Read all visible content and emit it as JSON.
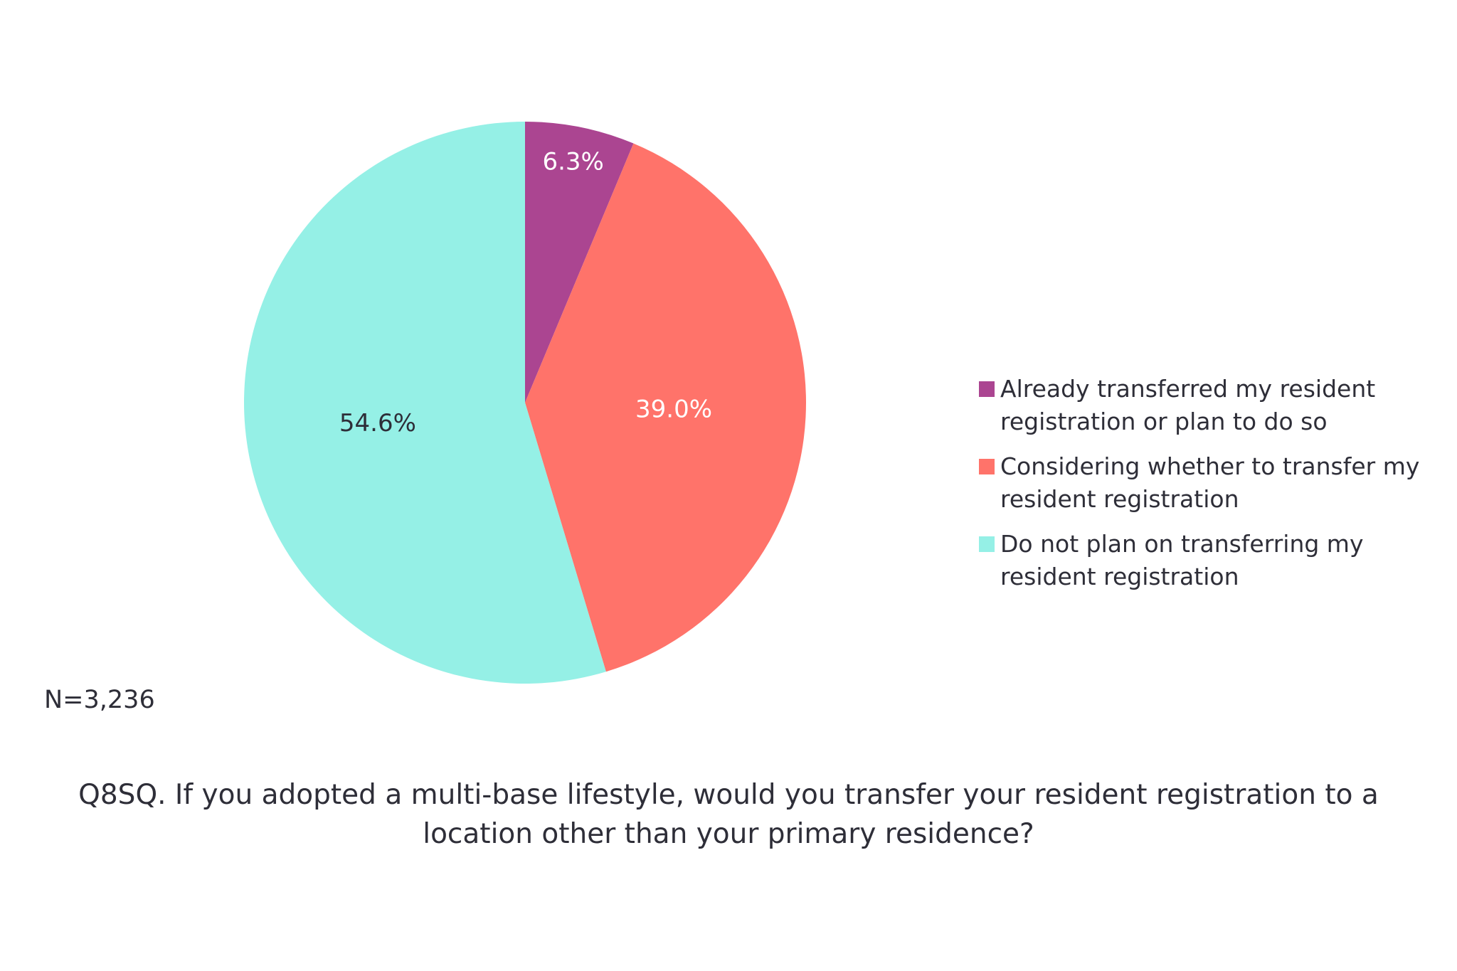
{
  "chart_data": {
    "type": "pie",
    "title": "Q8SQ. If you adopted a multi-base lifestyle, would you transfer your resident registration to a location other than your primary residence?",
    "note": "N=3,236",
    "categories": [
      "Already transferred my resident registration or plan to do so",
      "Considering whether to transfer my resident registration",
      "Do not plan on transferring my resident registration"
    ],
    "values": [
      6.3,
      39.0,
      54.6
    ],
    "value_labels": [
      "6.3%",
      "39.0%",
      "54.6%"
    ],
    "colors": [
      "#ab4591",
      "#ff736a",
      "#95f0e6"
    ]
  }
}
